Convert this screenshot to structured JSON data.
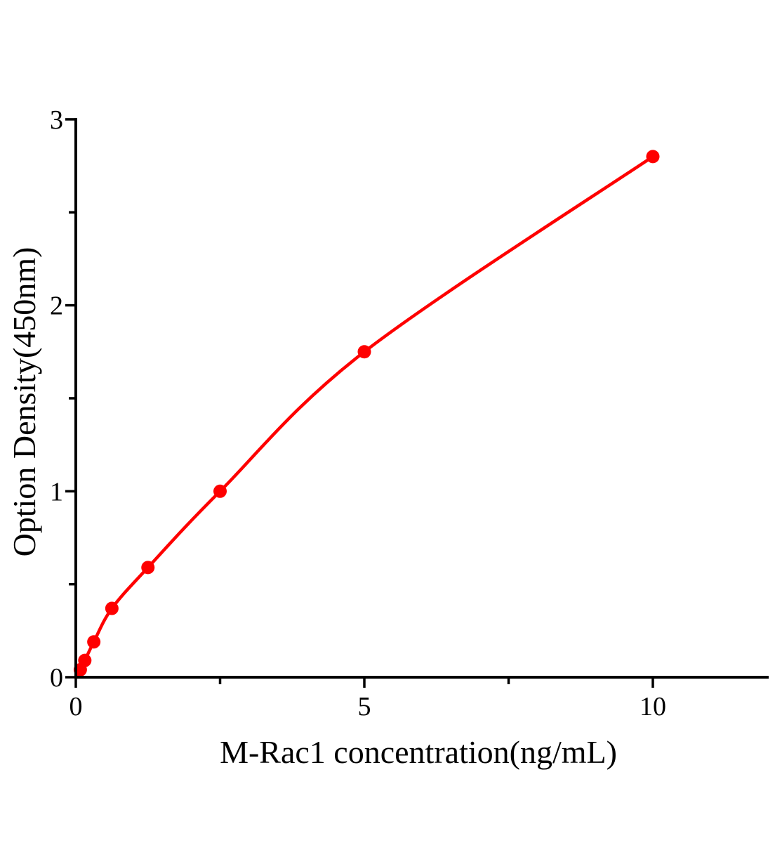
{
  "chart_data": {
    "type": "scatter",
    "title": "",
    "xlabel": "M-Rac1 concentration(ng/mL)",
    "ylabel": "Option Density(450nm)",
    "x": [
      0.078,
      0.156,
      0.312,
      0.625,
      1.25,
      2.5,
      5,
      10
    ],
    "y": [
      0.04,
      0.09,
      0.19,
      0.37,
      0.59,
      1.0,
      1.75,
      2.8
    ],
    "curve_start": [
      0,
      0
    ],
    "xlim": [
      0,
      12
    ],
    "ylim": [
      0,
      3
    ],
    "x_major_ticks": [
      0,
      5,
      10
    ],
    "x_minor_ticks": [
      2.5,
      7.5
    ],
    "y_major_ticks": [
      0,
      1,
      2,
      3
    ],
    "y_minor_ticks": [
      0.5,
      1.5,
      2.5
    ],
    "x_tick_labels": [
      "0",
      "5",
      "10"
    ],
    "y_tick_labels": [
      "0",
      "1",
      "2",
      "3"
    ],
    "grid": false,
    "legend": false,
    "line_color": "#fe0000",
    "marker_color": "#fe0000",
    "axis_color": "#000000",
    "background_color": "#ffffff"
  }
}
